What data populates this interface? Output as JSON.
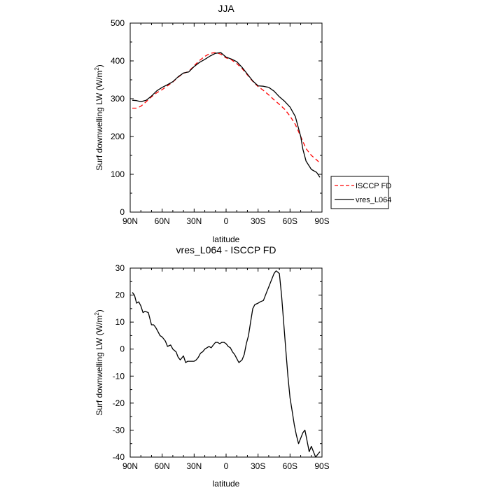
{
  "chart_data": [
    {
      "type": "line",
      "title": "JJA",
      "xlabel": "latitude",
      "ylabel": "Surf downwelling LW (W/m²)",
      "ylabel_main": "Surf downwelling LW (W/m",
      "ylabel_sup": "2",
      "ylabel_close": ")",
      "xlim": [
        90,
        -90
      ],
      "ylim": [
        0,
        500
      ],
      "x_ticks": [
        90,
        60,
        30,
        0,
        -30,
        -60,
        -90
      ],
      "x_tick_labels": [
        "90N",
        "60N",
        "30N",
        "0",
        "30S",
        "60S",
        "90S"
      ],
      "y_ticks": [
        0,
        100,
        200,
        300,
        400,
        500
      ],
      "y_tick_labels": [
        "0",
        "100",
        "200",
        "300",
        "400",
        "500"
      ],
      "legend_position": "outside-right",
      "series": [
        {
          "name": "ISCCP FD",
          "color": "#ff0000",
          "dash": "dashed",
          "x": [
            88,
            84,
            80,
            75,
            70,
            65,
            60,
            55,
            50,
            45,
            40,
            35,
            30,
            25,
            20,
            15,
            10,
            5,
            0,
            -5,
            -10,
            -15,
            -20,
            -25,
            -30,
            -35,
            -40,
            -45,
            -50,
            -55,
            -60,
            -65,
            -70,
            -75,
            -80,
            -85,
            -88
          ],
          "y": [
            275,
            275,
            280,
            292,
            305,
            316,
            324,
            334,
            344,
            357,
            367,
            372,
            387,
            401,
            412,
            420,
            422,
            418,
            408,
            403,
            393,
            380,
            363,
            346,
            332,
            322,
            310,
            297,
            285,
            272,
            254,
            232,
            200,
            168,
            150,
            138,
            130
          ]
        },
        {
          "name": "vres_L064",
          "color": "#000000",
          "dash": "solid",
          "x": [
            88,
            84,
            80,
            75,
            70,
            65,
            60,
            55,
            50,
            45,
            40,
            35,
            30,
            25,
            20,
            15,
            10,
            5,
            0,
            -5,
            -10,
            -15,
            -20,
            -25,
            -30,
            -35,
            -40,
            -45,
            -50,
            -55,
            -60,
            -65,
            -70,
            -72,
            -75,
            -80,
            -85,
            -88
          ],
          "y": [
            296,
            295,
            292,
            296,
            307,
            321,
            330,
            337,
            345,
            358,
            368,
            371,
            385,
            396,
            404,
            413,
            420,
            422,
            410,
            405,
            398,
            383,
            365,
            347,
            334,
            333,
            330,
            320,
            305,
            293,
            278,
            253,
            200,
            167,
            135,
            113,
            105,
            92
          ]
        }
      ]
    },
    {
      "type": "line",
      "title": "vres_L064 - ISCCP FD",
      "xlabel": "latitude",
      "ylabel": "Surf downwelling LW (W/m²)",
      "ylabel_main": "Surf downwelling LW (W/m",
      "ylabel_sup": "2",
      "ylabel_close": ")",
      "xlim": [
        90,
        -90
      ],
      "ylim": [
        -40,
        30
      ],
      "x_ticks": [
        90,
        60,
        30,
        0,
        -30,
        -60,
        -90
      ],
      "x_tick_labels": [
        "90N",
        "60N",
        "30N",
        "0",
        "30S",
        "60S",
        "90S"
      ],
      "y_ticks": [
        -40,
        -30,
        -20,
        -10,
        0,
        10,
        20,
        30
      ],
      "y_tick_labels": [
        "-40",
        "-30",
        "-20",
        "-10",
        "0",
        "10",
        "20",
        "30"
      ],
      "series": [
        {
          "name": "vres_L064 - ISCCP FD",
          "color": "#000000",
          "dash": "solid",
          "x": [
            88,
            86,
            84,
            82,
            80,
            78,
            76,
            73,
            70,
            68,
            66,
            64,
            62,
            60,
            57,
            55,
            52,
            50,
            47,
            45,
            43,
            40,
            38,
            36,
            34,
            32,
            30,
            28,
            26,
            24,
            22,
            20,
            18,
            16,
            14,
            12,
            10,
            8,
            6,
            4,
            2,
            0,
            -2,
            -4,
            -6,
            -8,
            -10,
            -12,
            -15,
            -17,
            -19,
            -21,
            -23,
            -25,
            -27,
            -30,
            -32,
            -35,
            -38,
            -40,
            -42,
            -45,
            -47,
            -50,
            -52,
            -54,
            -56,
            -58,
            -60,
            -62,
            -64,
            -66,
            -68,
            -70,
            -72,
            -74,
            -76,
            -78,
            -80,
            -82,
            -84,
            -86,
            -88
          ],
          "y": [
            21,
            20,
            17,
            17.5,
            16,
            13.5,
            14,
            13.5,
            9,
            9,
            8,
            6.5,
            5,
            4.5,
            3,
            1,
            1.5,
            0,
            -1,
            -3,
            -4,
            -2.5,
            -5,
            -4.5,
            -4.5,
            -4.5,
            -4.5,
            -4,
            -3,
            -1.5,
            -1,
            0,
            0.5,
            1,
            0.5,
            1.5,
            2.5,
            2.5,
            2,
            2.5,
            2.5,
            2,
            1,
            0.5,
            -1,
            -2,
            -3.5,
            -5,
            -4,
            -2,
            2,
            5,
            10,
            15,
            16.5,
            17,
            17.5,
            18,
            21,
            23,
            25,
            28,
            29,
            28,
            20,
            10,
            0,
            -10,
            -18,
            -23,
            -28,
            -32,
            -35,
            -33,
            -31,
            -30,
            -34,
            -38,
            -36,
            -38,
            -40,
            -39,
            -38
          ]
        }
      ]
    }
  ]
}
